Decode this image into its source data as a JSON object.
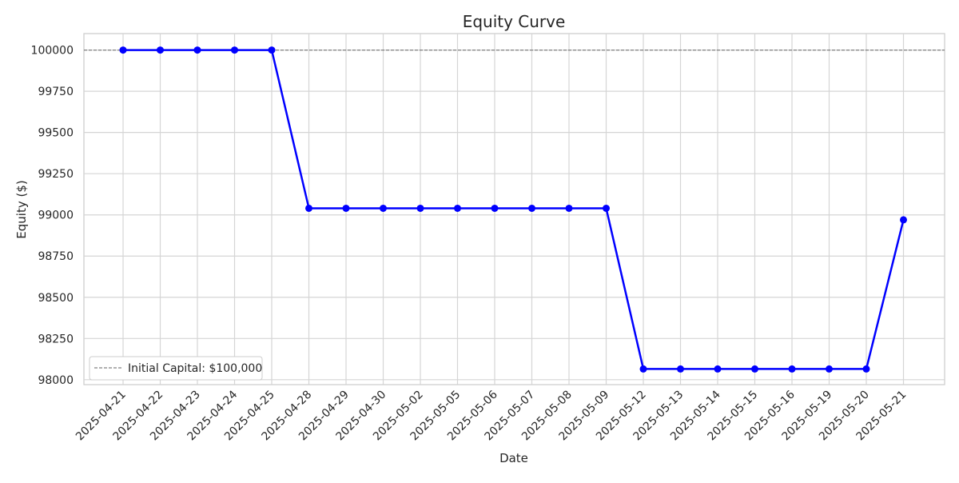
{
  "chart_data": {
    "type": "line",
    "title": "Equity Curve",
    "xlabel": "Date",
    "ylabel": "Equity ($)",
    "x": [
      "2025-04-21",
      "2025-04-22",
      "2025-04-23",
      "2025-04-24",
      "2025-04-25",
      "2025-04-28",
      "2025-04-29",
      "2025-04-30",
      "2025-05-02",
      "2025-05-05",
      "2025-05-06",
      "2025-05-07",
      "2025-05-08",
      "2025-05-09",
      "2025-05-12",
      "2025-05-13",
      "2025-05-14",
      "2025-05-15",
      "2025-05-16",
      "2025-05-19",
      "2025-05-20",
      "2025-05-21"
    ],
    "series": [
      {
        "values": [
          100000,
          100000,
          100000,
          100000,
          100000,
          99040,
          99040,
          99040,
          99040,
          99040,
          99040,
          99040,
          99040,
          99040,
          98065,
          98065,
          98065,
          98065,
          98065,
          98065,
          98065,
          98970
        ],
        "color": "#0000ff",
        "marker": "circle"
      }
    ],
    "reference_line": {
      "y": 100000,
      "label": "Initial Capital: $100,000",
      "color": "#808080",
      "style": "dashed"
    },
    "yticks": [
      98000,
      98250,
      98500,
      98750,
      99000,
      99250,
      99500,
      99750,
      100000
    ],
    "ylim": [
      97970,
      100100
    ],
    "grid": true,
    "legend_position": "lower-left"
  }
}
